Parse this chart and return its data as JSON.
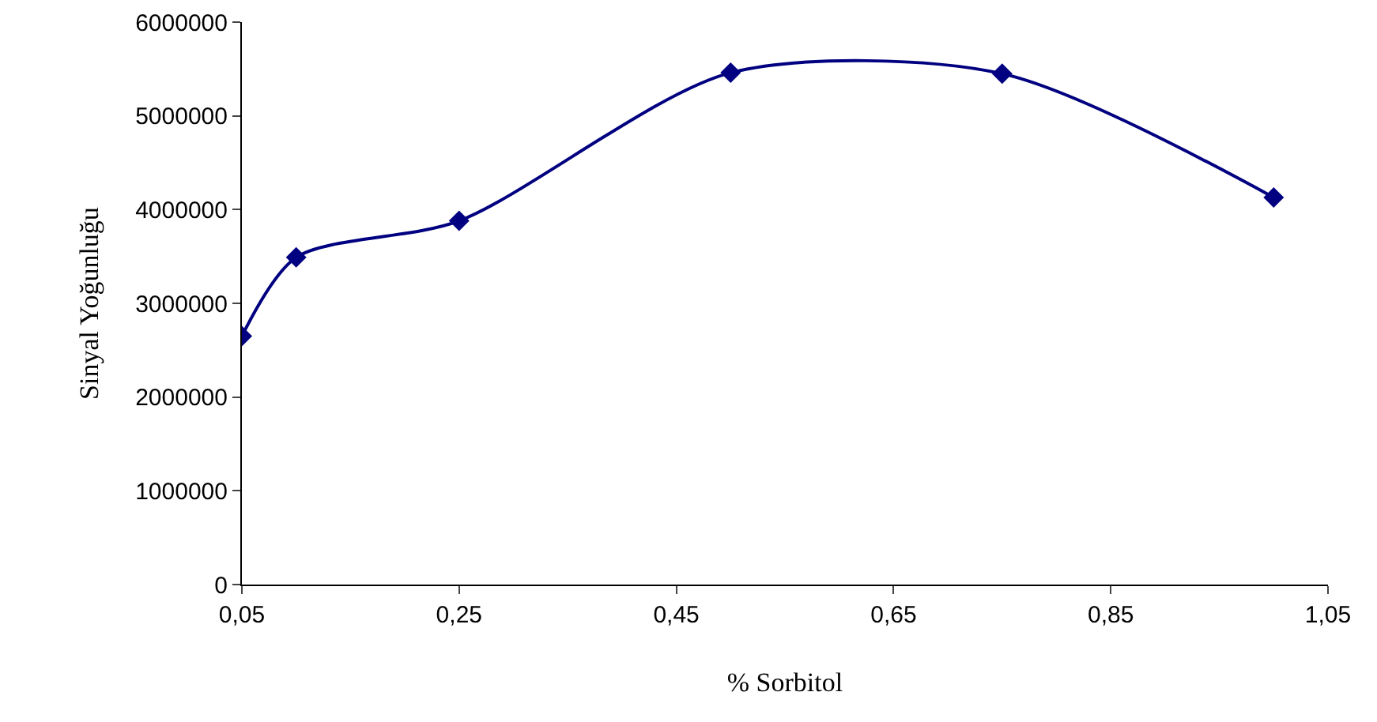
{
  "chart_data": {
    "type": "line",
    "xlabel": "% Sorbitol",
    "ylabel": "Sinyal Yoğunluğu",
    "x": [
      0.05,
      0.1,
      0.25,
      0.5,
      0.75,
      1.0
    ],
    "series": [
      {
        "color": "#000080",
        "values": [
          2650000,
          3490000,
          3880000,
          5460000,
          5450000,
          4130000
        ]
      }
    ],
    "xlim": [
      0.05,
      1.05
    ],
    "xticks": [
      {
        "value": 0.05,
        "label": "0,05"
      },
      {
        "value": 0.25,
        "label": "0,25"
      },
      {
        "value": 0.45,
        "label": "0,45"
      },
      {
        "value": 0.65,
        "label": "0,65"
      },
      {
        "value": 0.85,
        "label": "0,85"
      },
      {
        "value": 1.05,
        "label": "1,05"
      }
    ],
    "ylim": [
      0,
      6000000
    ],
    "yticks": [
      0,
      1000000,
      2000000,
      3000000,
      4000000,
      5000000,
      6000000
    ],
    "grid": false,
    "marker": "diamond",
    "line_style": "solid"
  }
}
